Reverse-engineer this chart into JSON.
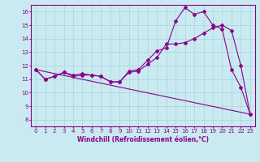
{
  "background_color": "#c8eaf0",
  "line_color": "#8b008b",
  "marker": "D",
  "markersize": 2,
  "linewidth": 0.8,
  "xlabel": "Windchill (Refroidissement éolien,°C)",
  "xlabel_fontsize": 5.5,
  "tick_fontsize": 5,
  "xlim": [
    -0.5,
    23.5
  ],
  "ylim": [
    7.5,
    16.5
  ],
  "xticks": [
    0,
    1,
    2,
    3,
    4,
    5,
    6,
    7,
    8,
    9,
    10,
    11,
    12,
    13,
    14,
    15,
    16,
    17,
    18,
    19,
    20,
    21,
    22,
    23
  ],
  "yticks": [
    8,
    9,
    10,
    11,
    12,
    13,
    14,
    15,
    16
  ],
  "grid_color": "#aad4dc",
  "series": [
    {
      "x": [
        0,
        1,
        2,
        3,
        4,
        5,
        6,
        7,
        8,
        9,
        10,
        11,
        12,
        13,
        14,
        15,
        16,
        17,
        18,
        19,
        20,
        21,
        22,
        23
      ],
      "y": [
        11.7,
        11.0,
        11.2,
        11.5,
        11.2,
        11.3,
        11.3,
        11.2,
        10.8,
        10.8,
        11.6,
        11.7,
        12.4,
        13.1,
        13.3,
        15.3,
        16.3,
        15.8,
        16.0,
        15.0,
        14.7,
        11.7,
        10.4,
        8.4
      ]
    },
    {
      "x": [
        0,
        1,
        2,
        3,
        4,
        5,
        6,
        7,
        8,
        9,
        10,
        11,
        12,
        13,
        14,
        15,
        16,
        17,
        18,
        19,
        20,
        21,
        22,
        23
      ],
      "y": [
        11.7,
        11.0,
        11.2,
        11.5,
        11.3,
        11.4,
        11.3,
        11.2,
        10.8,
        10.8,
        11.5,
        11.6,
        12.1,
        12.6,
        13.6,
        13.6,
        13.7,
        14.0,
        14.4,
        14.8,
        15.0,
        14.6,
        12.0,
        8.4
      ]
    },
    {
      "x": [
        0,
        23
      ],
      "y": [
        11.7,
        8.4
      ]
    }
  ]
}
